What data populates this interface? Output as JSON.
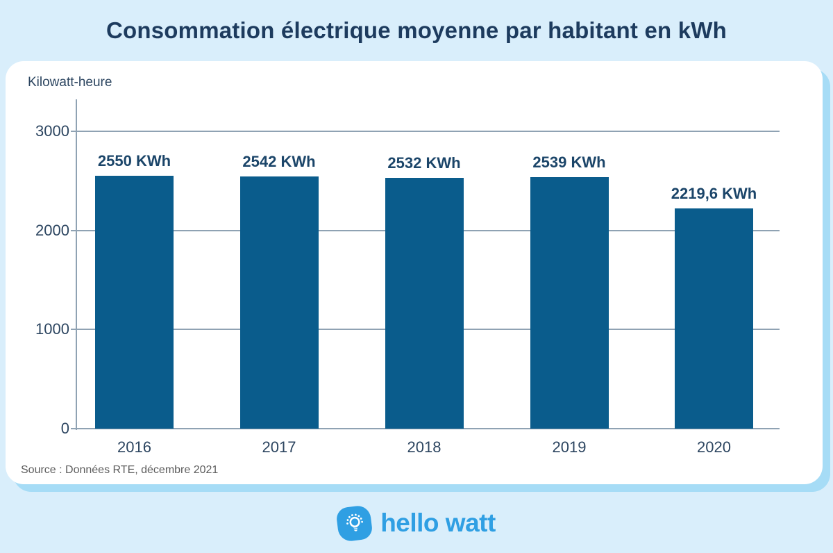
{
  "title": "Consommation électrique moyenne par habitant en kWh",
  "chart_data": {
    "type": "bar",
    "categories": [
      "2016",
      "2017",
      "2018",
      "2019",
      "2020"
    ],
    "values": [
      2550,
      2542,
      2532,
      2539,
      2219.6
    ],
    "bar_labels": [
      "2550 KWh",
      "2542 KWh",
      "2532 KWh",
      "2539 KWh",
      "2219,6 KWh"
    ],
    "title": "Consommation électrique moyenne par habitant en kWh",
    "xlabel": "",
    "ylabel": "Kilowatt-heure",
    "yticks": [
      0,
      1000,
      2000,
      3000
    ],
    "ytick_labels": [
      "0",
      "1000",
      "2000",
      "3000"
    ],
    "ylim": [
      0,
      3000
    ],
    "grid": true,
    "legend": "none",
    "bar_color": "#0a5c8c"
  },
  "source": "Source : Données RTE, décembre 2021",
  "footer": {
    "brand": "hello watt",
    "logo_icon": "lightbulb-icon"
  },
  "colors": {
    "background": "#d9eefb",
    "card": "#ffffff",
    "card_shadow": "#a6dcf6",
    "bar": "#0a5c8c",
    "title_text": "#1d3b5e",
    "axis_text": "#2c4560",
    "value_text": "#1b4569",
    "gridline": "#8fa2b3",
    "source_text": "#5c5c5c",
    "brand_blue": "#2f9fe3"
  }
}
